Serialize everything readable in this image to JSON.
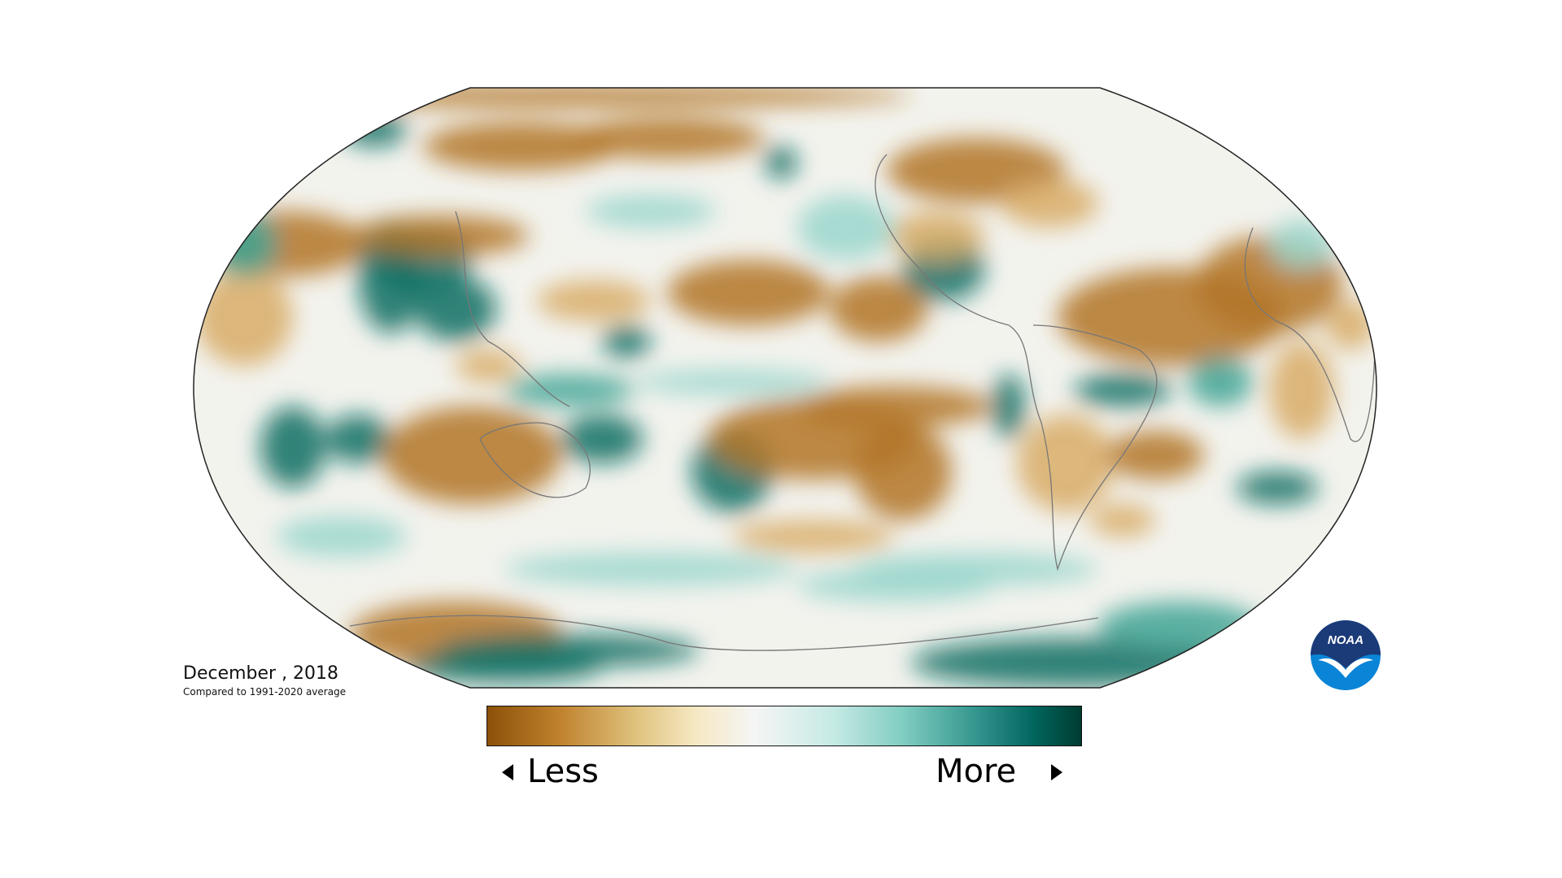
{
  "map": {
    "title": "December , 2018",
    "subtitle": "Compared to 1991-2020 average",
    "projection": "Robinson",
    "variable": "precipitation anomaly",
    "palette": {
      "less": "#8c5109",
      "neutral": "#f5f5f5",
      "more": "#003c30"
    }
  },
  "legend": {
    "less_label": "Less",
    "more_label": "More"
  },
  "logo": {
    "text": "NOAA",
    "colors": {
      "top": "#1b3a78",
      "bottom": "#0a84d6"
    }
  }
}
